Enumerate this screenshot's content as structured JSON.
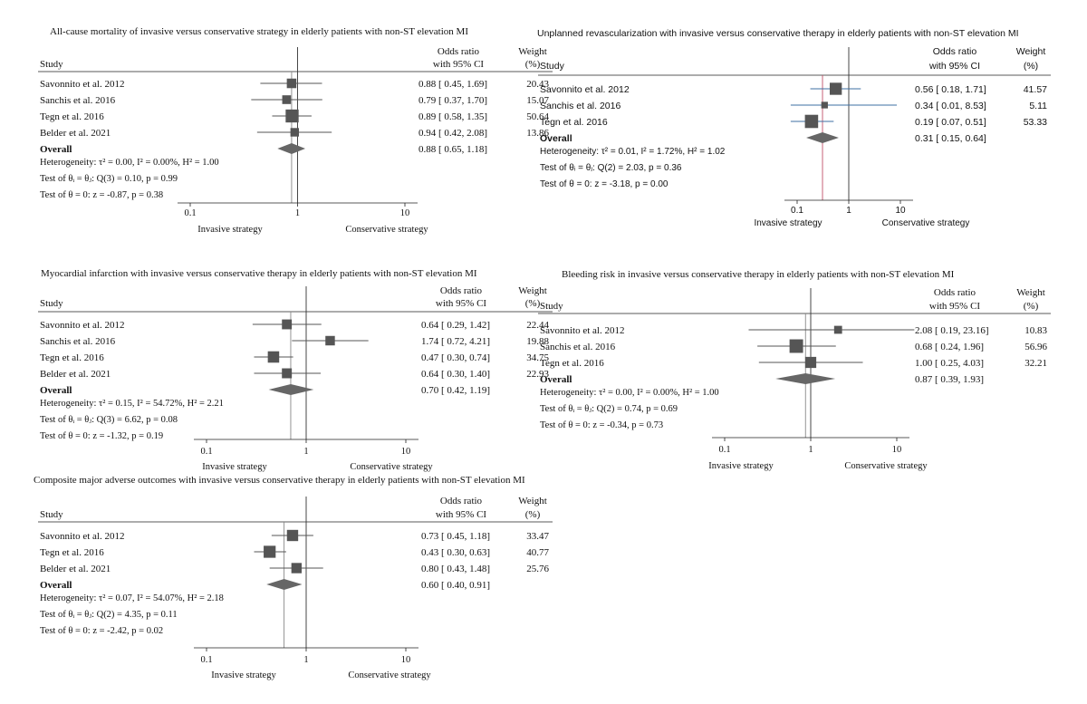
{
  "chart_data": [
    {
      "type": "forest",
      "title": "All-cause mortality of invasive versus conservative strategy in elderly patients with non-ST elevation MI",
      "font": "serif",
      "header": {
        "study": "Study",
        "or_line1": "Odds ratio",
        "or_line2": "with 95% CI",
        "weight_line1": "Weight",
        "weight_line2": "(%)"
      },
      "studies": [
        {
          "name": "Savonnito et al. 2012",
          "or": 0.88,
          "lo": 0.45,
          "hi": 1.69,
          "weight": 20.43,
          "text": "0.88 [ 0.45, 1.69]",
          "weight_text": "20.43"
        },
        {
          "name": "Sanchis et al. 2016",
          "or": 0.79,
          "lo": 0.37,
          "hi": 1.7,
          "weight": 15.07,
          "text": "0.79 [ 0.37, 1.70]",
          "weight_text": "15.07"
        },
        {
          "name": "Tegn et al. 2016",
          "or": 0.89,
          "lo": 0.58,
          "hi": 1.35,
          "weight": 50.64,
          "text": "0.89 [ 0.58, 1.35]",
          "weight_text": "50.64"
        },
        {
          "name": "Belder et al. 2021",
          "or": 0.94,
          "lo": 0.42,
          "hi": 2.08,
          "weight": 13.86,
          "text": "0.94 [ 0.42, 2.08]",
          "weight_text": "13.86"
        }
      ],
      "overall": {
        "label": "Overall",
        "or": 0.88,
        "lo": 0.65,
        "hi": 1.18,
        "text": "0.88 [ 0.65, 1.18]"
      },
      "stats": [
        "Heterogeneity: τ² = 0.00, I² = 0.00%, H² = 1.00",
        "Test of θᵢ = θⱼ: Q(3) = 0.10, p = 0.99",
        "Test of θ = 0: z = -0.87, p = 0.38"
      ],
      "xscale": "log",
      "xlim": [
        0.1,
        10
      ],
      "xticks": [
        "0.1",
        "1",
        "10"
      ],
      "left_label": "Invasive strategy",
      "right_label": "Conservative strategy"
    },
    {
      "type": "forest",
      "title": "Unplanned revascularization with invasive versus conservative therapy in elderly patients with non-ST elevation MI",
      "font": "sans",
      "header": {
        "study": "Study",
        "or_line1": "Odds ratio",
        "or_line2": "with 95% CI",
        "weight_line1": "Weight",
        "weight_line2": "(%)"
      },
      "studies": [
        {
          "name": "Savonnito et al. 2012",
          "or": 0.56,
          "lo": 0.18,
          "hi": 1.71,
          "weight": 41.57,
          "text": "0.56 [ 0.18, 1.71]",
          "weight_text": "41.57"
        },
        {
          "name": "Sanchis et al. 2016",
          "or": 0.34,
          "lo": 0.01,
          "hi": 8.53,
          "weight": 5.11,
          "text": "0.34 [ 0.01, 8.53]",
          "weight_text": "5.11"
        },
        {
          "name": "Tegn et al. 2016",
          "or": 0.19,
          "lo": 0.07,
          "hi": 0.51,
          "weight": 53.33,
          "text": "0.19 [ 0.07, 0.51]",
          "weight_text": "53.33"
        }
      ],
      "overall": {
        "label": "Overall",
        "or": 0.31,
        "lo": 0.15,
        "hi": 0.64,
        "text": "0.31 [ 0.15, 0.64]"
      },
      "stats": [
        "Heterogeneity: τ² = 0.01, I² = 1.72%, H² = 1.02",
        "Test of θᵢ = θⱼ: Q(2) = 2.03, p = 0.36",
        "Test of θ = 0: z = -3.18, p = 0.00"
      ],
      "xscale": "log",
      "xlim": [
        0.1,
        10
      ],
      "xticks": [
        "0.1",
        "1",
        "10"
      ],
      "left_label": "Invasive strategy",
      "right_label": "Conservative strategy",
      "colors": {
        "ci_line": "#3d6fa3",
        "overall_line": "#c0506a"
      }
    },
    {
      "type": "forest",
      "title": "Myocardial infarction with invasive versus conservative therapy in elderly patients with non-ST elevation MI",
      "font": "serif",
      "header": {
        "study": "Study",
        "or_line1": "Odds ratio",
        "or_line2": "with 95% CI",
        "weight_line1": "Weight",
        "weight_line2": "(%)"
      },
      "studies": [
        {
          "name": "Savonnito et al. 2012",
          "or": 0.64,
          "lo": 0.29,
          "hi": 1.42,
          "weight": 22.44,
          "text": "0.64 [ 0.29, 1.42]",
          "weight_text": "22.44"
        },
        {
          "name": "Sanchis et al. 2016",
          "or": 1.74,
          "lo": 0.72,
          "hi": 4.21,
          "weight": 19.88,
          "text": "1.74 [ 0.72, 4.21]",
          "weight_text": "19.88"
        },
        {
          "name": "Tegn et al. 2016",
          "or": 0.47,
          "lo": 0.3,
          "hi": 0.74,
          "weight": 34.75,
          "text": "0.47 [ 0.30, 0.74]",
          "weight_text": "34.75"
        },
        {
          "name": "Belder et al. 2021",
          "or": 0.64,
          "lo": 0.3,
          "hi": 1.4,
          "weight": 22.93,
          "text": "0.64 [ 0.30, 1.40]",
          "weight_text": "22.93"
        }
      ],
      "overall": {
        "label": "Overall",
        "or": 0.7,
        "lo": 0.42,
        "hi": 1.19,
        "text": "0.70 [ 0.42, 1.19]"
      },
      "stats": [
        "Heterogeneity: τ² = 0.15, I² = 54.72%, H² = 2.21",
        "Test of θᵢ = θⱼ: Q(3) = 6.62, p = 0.08",
        "Test of θ = 0: z = -1.32, p = 0.19"
      ],
      "xscale": "log",
      "xlim": [
        0.1,
        10
      ],
      "xticks": [
        "0.1",
        "1",
        "10"
      ],
      "left_label": "Invasive strategy",
      "right_label": "Conservative strategy"
    },
    {
      "type": "forest",
      "title": "Bleeding risk in invasive versus conservative therapy in elderly patients with non-ST elevation MI",
      "font": "serif",
      "header": {
        "study": "Study",
        "or_line1": "Odds ratio",
        "or_line2": "with 95% CI",
        "weight_line1": "Weight",
        "weight_line2": "(%)"
      },
      "studies": [
        {
          "name": "Savonnito et al. 2012",
          "or": 2.08,
          "lo": 0.19,
          "hi": 23.16,
          "weight": 10.83,
          "text": "2.08 [ 0.19, 23.16]",
          "weight_text": "10.83"
        },
        {
          "name": "Sanchis et al. 2016",
          "or": 0.68,
          "lo": 0.24,
          "hi": 1.96,
          "weight": 56.96,
          "text": "0.68 [ 0.24, 1.96]",
          "weight_text": "56.96"
        },
        {
          "name": "Tegn et al. 2016",
          "or": 1.0,
          "lo": 0.25,
          "hi": 4.03,
          "weight": 32.21,
          "text": "1.00 [ 0.25, 4.03]",
          "weight_text": "32.21"
        }
      ],
      "overall": {
        "label": "Overall",
        "or": 0.87,
        "lo": 0.39,
        "hi": 1.93,
        "text": "0.87 [ 0.39, 1.93]"
      },
      "stats": [
        "Heterogeneity: τ² = 0.00, I² = 0.00%, H² = 1.00",
        "Test of θᵢ = θⱼ: Q(2) = 0.74, p = 0.69",
        "Test of θ = 0: z = -0.34, p = 0.73"
      ],
      "xscale": "log",
      "xlim": [
        0.1,
        10
      ],
      "xticks": [
        "0.1",
        "1",
        "10"
      ],
      "left_label": "Invasive strategy",
      "right_label": "Conservative strategy"
    },
    {
      "type": "forest",
      "title": "Composite major adverse outcomes with invasive versus conservative therapy in elderly patients with non-ST elevation MI",
      "font": "serif",
      "header": {
        "study": "Study",
        "or_line1": "Odds ratio",
        "or_line2": "with 95% CI",
        "weight_line1": "Weight",
        "weight_line2": "(%)"
      },
      "studies": [
        {
          "name": "Savonnito et al. 2012",
          "or": 0.73,
          "lo": 0.45,
          "hi": 1.18,
          "weight": 33.47,
          "text": "0.73 [ 0.45, 1.18]",
          "weight_text": "33.47"
        },
        {
          "name": "Tegn et al. 2016",
          "or": 0.43,
          "lo": 0.3,
          "hi": 0.63,
          "weight": 40.77,
          "text": "0.43 [ 0.30, 0.63]",
          "weight_text": "40.77"
        },
        {
          "name": "Belder et al. 2021",
          "or": 0.8,
          "lo": 0.43,
          "hi": 1.48,
          "weight": 25.76,
          "text": "0.80 [ 0.43, 1.48]",
          "weight_text": "25.76"
        }
      ],
      "overall": {
        "label": "Overall",
        "or": 0.6,
        "lo": 0.4,
        "hi": 0.91,
        "text": "0.60 [ 0.40, 0.91]"
      },
      "stats": [
        "Heterogeneity: τ² = 0.07, I² = 54.07%, H² = 2.18",
        "Test of θᵢ = θⱼ: Q(2) = 4.35, p = 0.11",
        "Test of θ = 0: z = -2.42, p = 0.02"
      ],
      "xscale": "log",
      "xlim": [
        0.1,
        10
      ],
      "xticks": [
        "0.1",
        "1",
        "10"
      ],
      "left_label": "Invasive strategy",
      "right_label": "Conservative strategy"
    }
  ]
}
